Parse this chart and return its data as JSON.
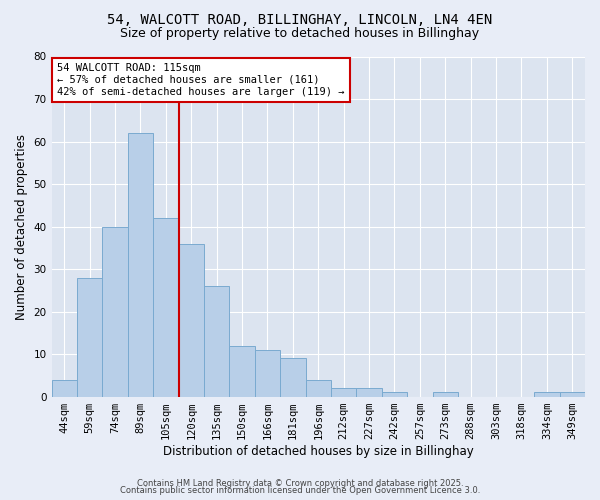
{
  "title1": "54, WALCOTT ROAD, BILLINGHAY, LINCOLN, LN4 4EN",
  "title2": "Size of property relative to detached houses in Billinghay",
  "xlabel": "Distribution of detached houses by size in Billinghay",
  "ylabel": "Number of detached properties",
  "categories": [
    "44sqm",
    "59sqm",
    "74sqm",
    "89sqm",
    "105sqm",
    "120sqm",
    "135sqm",
    "150sqm",
    "166sqm",
    "181sqm",
    "196sqm",
    "212sqm",
    "227sqm",
    "242sqm",
    "257sqm",
    "273sqm",
    "288sqm",
    "303sqm",
    "318sqm",
    "334sqm",
    "349sqm"
  ],
  "values": [
    4,
    28,
    40,
    62,
    42,
    36,
    26,
    12,
    11,
    9,
    4,
    2,
    2,
    1,
    0,
    1,
    0,
    0,
    0,
    1,
    1
  ],
  "bar_color": "#b8cfe8",
  "bar_edge_color": "#7aaad0",
  "vline_x": 4.5,
  "vline_color": "#cc0000",
  "annotation_text": "54 WALCOTT ROAD: 115sqm\n← 57% of detached houses are smaller (161)\n42% of semi-detached houses are larger (119) →",
  "annotation_box_color": "#ffffff",
  "annotation_box_edge_color": "#cc0000",
  "ylim": [
    0,
    80
  ],
  "yticks": [
    0,
    10,
    20,
    30,
    40,
    50,
    60,
    70,
    80
  ],
  "bg_color": "#e8edf7",
  "plot_bg_color": "#dce4f0",
  "footer_line1": "Contains HM Land Registry data © Crown copyright and database right 2025.",
  "footer_line2": "Contains public sector information licensed under the Open Government Licence 3.0.",
  "title_fontsize": 10,
  "subtitle_fontsize": 9,
  "axis_label_fontsize": 8.5,
  "tick_fontsize": 7.5,
  "annotation_fontsize": 7.5,
  "footer_fontsize": 6
}
